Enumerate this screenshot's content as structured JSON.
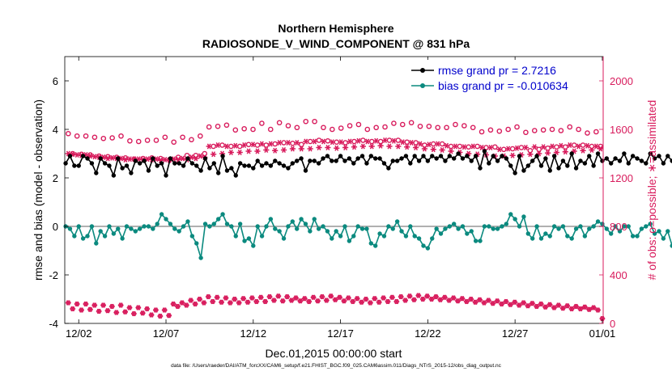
{
  "colors": {
    "rmse": "#000000",
    "bias": "#0b8a7f",
    "obs": "#d81b5c",
    "zero": "#b0b0b0"
  },
  "footnote": "data file: /Users/raeder/DAI/ATM_forcXX/CAM6_setup/f.e21.FHIST_BGC.f09_025.CAM6assim.011/Diags_NTrS_2015-12/obs_diag_output.nc",
  "chart_data": {
    "type": "line",
    "title": "Northern Hemisphere",
    "subtitle": "RADIOSONDE_V_WIND_COMPONENT @ 831 hPa",
    "xlabel": "Dec.01,2015 00:00:00 start",
    "ylabel_left": "rmse and bias (model - observation)",
    "ylabel_right": "# of obs: o=possible; ∗=assimilated",
    "ylim_left": [
      -4,
      7
    ],
    "ylim_right": [
      0,
      2200
    ],
    "xlim_days": [
      0.2,
      31.05
    ],
    "xtick_positions_days": [
      1,
      6,
      11,
      16,
      21,
      26,
      31
    ],
    "xtick_labels": [
      "12/02",
      "12/07",
      "12/12",
      "12/17",
      "12/22",
      "12/27",
      "01/01"
    ],
    "ytick_left": [
      -4,
      -2,
      0,
      2,
      4,
      6
    ],
    "ytick_right": [
      0,
      400,
      800,
      1200,
      1600,
      2000
    ],
    "time_step_days": 0.25,
    "legend": {
      "position": "top-right",
      "entries": [
        "rmse grand pr = 2.7216",
        "bias grand pr = -0.010634"
      ]
    },
    "series": [
      {
        "name": "rmse",
        "values": [
          2.6,
          2.9,
          2.5,
          2.5,
          2.9,
          2.8,
          2.6,
          2.2,
          2.8,
          2.6,
          2.5,
          2.1,
          2.8,
          2.4,
          2.5,
          2.2,
          2.7,
          2.6,
          2.7,
          2.3,
          2.8,
          2.5,
          2.6,
          2.1,
          2.8,
          2.6,
          2.6,
          2.5,
          2.8,
          2.6,
          2.5,
          2.3,
          2.8,
          2.4,
          2.6,
          2.2,
          2.9,
          2.3,
          2.4,
          2.1,
          2.6,
          2.5,
          2.5,
          2.4,
          2.7,
          2.5,
          2.6,
          2.5,
          2.7,
          2.6,
          2.5,
          2.4,
          2.6,
          2.7,
          2.8,
          2.3,
          2.7,
          2.7,
          2.6,
          2.8,
          2.9,
          2.7,
          2.7,
          2.9,
          2.7,
          2.8,
          2.6,
          2.8,
          2.9,
          2.6,
          2.9,
          2.8,
          2.8,
          2.6,
          2.4,
          2.7,
          2.7,
          2.8,
          2.9,
          2.6,
          2.9,
          2.7,
          2.9,
          2.7,
          2.9,
          2.8,
          2.9,
          2.7,
          2.9,
          2.8,
          3.0,
          2.8,
          2.9,
          2.7,
          2.9,
          2.4,
          3.1,
          2.6,
          2.9,
          2.7,
          2.9,
          2.8,
          2.5,
          2.2,
          2.9,
          2.3,
          2.5,
          2.7,
          2.9,
          2.5,
          2.8,
          2.3,
          2.9,
          2.4,
          2.7,
          2.5,
          3.0,
          2.4,
          2.7,
          2.6,
          2.9,
          2.5,
          3.0,
          2.7,
          2.8,
          2.6,
          2.8,
          2.7,
          3.0,
          2.6,
          2.9,
          2.8,
          2.7,
          2.6,
          3.0,
          2.8,
          2.9,
          2.6,
          2.9,
          2.7,
          2.7,
          2.6,
          3.0,
          2.5,
          3.0,
          2.7,
          2.9,
          2.2,
          2.9,
          2.6,
          2.8,
          2.4,
          2.9,
          2.6,
          2.8,
          2.7,
          3.0,
          2.7,
          2.9,
          2.8,
          3.0,
          2.8,
          2.9,
          2.9,
          2.9,
          2.6,
          2.8,
          2.6,
          2.8,
          2.6,
          2.9,
          2.7,
          2.9,
          2.6,
          2.9,
          2.9,
          2.8,
          2.7,
          3.0,
          2.8,
          2.9,
          2.7,
          2.7,
          2.8,
          2.9,
          2.8,
          2.8,
          2.7,
          2.7,
          2.6,
          2.8,
          2.6,
          2.8,
          2.6,
          3.0,
          2.4,
          2.9,
          2.8,
          3.0,
          2.5,
          2.9,
          2.6,
          3.1,
          2.3,
          2.8,
          2.6,
          2.8,
          2.7,
          2.9,
          2.8,
          3.0,
          2.9,
          3.1,
          2.9,
          3.0,
          2.8,
          2.9,
          2.7,
          3.2,
          2.7,
          3.0,
          2.6,
          3.1,
          2.9,
          3.1,
          2.9,
          3.3,
          2.9,
          3.0,
          2.4,
          2.5,
          2.6,
          3.1,
          3.0,
          3.2,
          2.8,
          2.8,
          2.7,
          3.2,
          2.3,
          2.9,
          2.4,
          2.7,
          2.7,
          3.1,
          2.6,
          3.1,
          3.0,
          2.8,
          2.4
        ]
      },
      {
        "name": "bias",
        "values": [
          0.0,
          -0.1,
          -0.4,
          0.0,
          -0.5,
          -0.4,
          0.0,
          -0.7,
          -0.2,
          -0.4,
          0.0,
          -0.3,
          -0.1,
          -0.5,
          0.0,
          -0.1,
          -0.2,
          -0.1,
          0.0,
          0.0,
          -0.1,
          0.1,
          0.5,
          0.3,
          0.1,
          -0.1,
          -0.2,
          0.0,
          0.2,
          -0.4,
          -0.7,
          -1.3,
          0.1,
          0.0,
          0.1,
          0.3,
          0.5,
          0.1,
          0.0,
          -0.4,
          0.1,
          -0.6,
          -0.5,
          -0.8,
          0.0,
          -0.4,
          0.0,
          0.3,
          -0.1,
          -0.2,
          -0.5,
          0.0,
          0.2,
          -0.1,
          0.3,
          0.1,
          -0.2,
          0.3,
          -0.1,
          0.0,
          -0.2,
          -0.5,
          -0.2,
          -0.4,
          0.0,
          -0.6,
          -0.4,
          0.0,
          -0.1,
          -0.1,
          -0.7,
          -0.8,
          -0.3,
          -0.4,
          0.0,
          -0.1,
          0.2,
          -0.2,
          -0.4,
          0.0,
          -0.4,
          -0.5,
          -0.8,
          -0.9,
          -0.5,
          -0.1,
          -0.3,
          -0.1,
          0.0,
          0.1,
          -0.1,
          0.0,
          -0.3,
          -0.2,
          -0.6,
          -0.6,
          0.0,
          0.0,
          -0.1,
          -0.1,
          0.0,
          0.1,
          0.5,
          0.3,
          0.0,
          0.4,
          -0.3,
          -0.5,
          0.0,
          -0.5,
          -0.3,
          -0.4,
          0.0,
          -0.1,
          0.0,
          -0.4,
          -0.5,
          -0.1,
          0.0,
          -0.4,
          -0.1,
          0.0,
          0.2,
          0.1,
          -0.1,
          -0.3,
          0.0,
          -0.2,
          0.0,
          0.0,
          -0.4,
          -0.4,
          -0.1,
          0.0,
          0.1,
          -0.3,
          -0.2,
          -0.5,
          -0.2,
          -0.8,
          -0.3,
          0.0,
          0.1,
          -0.4,
          -0.6,
          -0.5,
          -0.2,
          -0.5,
          -0.5,
          -0.8,
          -1.2,
          -0.4,
          0.0,
          -0.3,
          -0.5,
          0.0,
          0.0,
          -0.3,
          0.0,
          0.0,
          0.4,
          0.2,
          0.2,
          0.2,
          0.0,
          0.1,
          0.2,
          0.0,
          0.1,
          0.3,
          0.2,
          0.0,
          0.1,
          -0.3,
          0.1,
          0.2,
          0.0,
          -0.1,
          -0.2,
          0.1,
          0.2,
          0.0,
          0.1,
          0.3,
          -0.1,
          0.1,
          0.0,
          -0.2,
          -0.3,
          -0.7,
          -1.0,
          -0.5,
          -0.3,
          0.1,
          0.1,
          0.2,
          0.0,
          0.3,
          0.2,
          0.0,
          -0.1,
          -0.3,
          -0.1,
          0.0,
          -0.1,
          0.1,
          0.0,
          0.2,
          0.3,
          0.0,
          -0.3,
          0.2,
          0.5,
          0.2,
          0.3,
          -0.1,
          0.1,
          0.5,
          0.3,
          0.4,
          0.2,
          0.5,
          0.3,
          0.1,
          0.0,
          0.3,
          0.2,
          0.0,
          0.1,
          0.3,
          0.4,
          -0.1,
          0.0,
          0.5
        ]
      },
      {
        "name": "possible",
        "values": [
          1565,
          1400,
          1545,
          1395,
          1545,
          1390,
          1535,
          1380,
          1525,
          1375,
          1530,
          1370,
          1545,
          1365,
          1505,
          1355,
          1500,
          1360,
          1510,
          1365,
          1510,
          1360,
          1535,
          1350,
          1495,
          1370,
          1535,
          1385,
          1515,
          1385,
          1545,
          1400,
          1620,
          1460,
          1625,
          1470,
          1635,
          1460,
          1595,
          1460,
          1605,
          1475,
          1600,
          1470,
          1650,
          1470,
          1600,
          1480,
          1655,
          1490,
          1630,
          1485,
          1615,
          1475,
          1665,
          1500,
          1665,
          1510,
          1615,
          1505,
          1600,
          1495,
          1610,
          1490,
          1630,
          1500,
          1640,
          1510,
          1600,
          1500,
          1615,
          1500,
          1620,
          1510,
          1650,
          1510,
          1640,
          1495,
          1655,
          1490,
          1625,
          1470,
          1625,
          1480,
          1615,
          1480,
          1615,
          1460,
          1640,
          1460,
          1630,
          1455,
          1615,
          1460,
          1580,
          1450,
          1595,
          1455,
          1585,
          1435,
          1600,
          1440,
          1620,
          1450,
          1575,
          1425,
          1590,
          1435,
          1595,
          1445,
          1600,
          1455,
          1590,
          1455,
          1620,
          1470,
          1600,
          1470,
          1570,
          1460,
          1580,
          1460
        ]
      },
      {
        "name": "assimilated",
        "values": [
          1400,
          1395,
          1390,
          1385,
          1390,
          1380,
          1375,
          1370,
          1370,
          1360,
          1365,
          1360,
          1360,
          1350,
          1355,
          1355,
          1355,
          1350,
          1355,
          1350,
          1355,
          1345,
          1350,
          1345,
          1355,
          1350,
          1360,
          1350,
          1370,
          1360,
          1380,
          1370,
          1460,
          1395,
          1470,
          1400,
          1460,
          1410,
          1465,
          1410,
          1470,
          1420,
          1475,
          1420,
          1480,
          1430,
          1480,
          1425,
          1490,
          1430,
          1490,
          1440,
          1490,
          1440,
          1500,
          1440,
          1500,
          1450,
          1500,
          1450,
          1495,
          1445,
          1495,
          1450,
          1500,
          1455,
          1505,
          1460,
          1500,
          1460,
          1505,
          1465,
          1510,
          1460,
          1505,
          1460,
          1495,
          1455,
          1490,
          1450,
          1480,
          1440,
          1475,
          1435,
          1480,
          1430,
          1465,
          1420,
          1460,
          1410,
          1455,
          1400,
          1460,
          1395,
          1450,
          1390,
          1450,
          1380,
          1435,
          1380,
          1440,
          1385,
          1445,
          1390,
          1450,
          1395,
          1455,
          1400,
          1455,
          1405,
          1460,
          1410,
          1465,
          1415,
          1470,
          1420,
          1460,
          1425,
          1465,
          1430,
          1460,
          1440
        ]
      },
      {
        "name": "possible_lower",
        "values": [
          170,
          120,
          160,
          110,
          160,
          115,
          150,
          100,
          150,
          105,
          140,
          90,
          150,
          95,
          130,
          80,
          130,
          85,
          120,
          70,
          110,
          60,
          110,
          65,
          160,
          140,
          170,
          150,
          190,
          160,
          200,
          170,
          220,
          180,
          215,
          175,
          210,
          170,
          200,
          170,
          205,
          175,
          210,
          180,
          215,
          180,
          220,
          190,
          225,
          185,
          220,
          190,
          210,
          185,
          205,
          180,
          215,
          185,
          220,
          190,
          225,
          195,
          215,
          185,
          210,
          180,
          205,
          175,
          200,
          170,
          205,
          175,
          210,
          180,
          215,
          180,
          220,
          190,
          225,
          195,
          230,
          200,
          225,
          200,
          220,
          195,
          215,
          190,
          210,
          185,
          205,
          180,
          200,
          175,
          195,
          170,
          190,
          165,
          185,
          160,
          180,
          155,
          175,
          150,
          170,
          145,
          165,
          140,
          160,
          135,
          155,
          130,
          150,
          125,
          145,
          120,
          140,
          120,
          135,
          115,
          130,
          110,
          40
        ]
      }
    ]
  }
}
